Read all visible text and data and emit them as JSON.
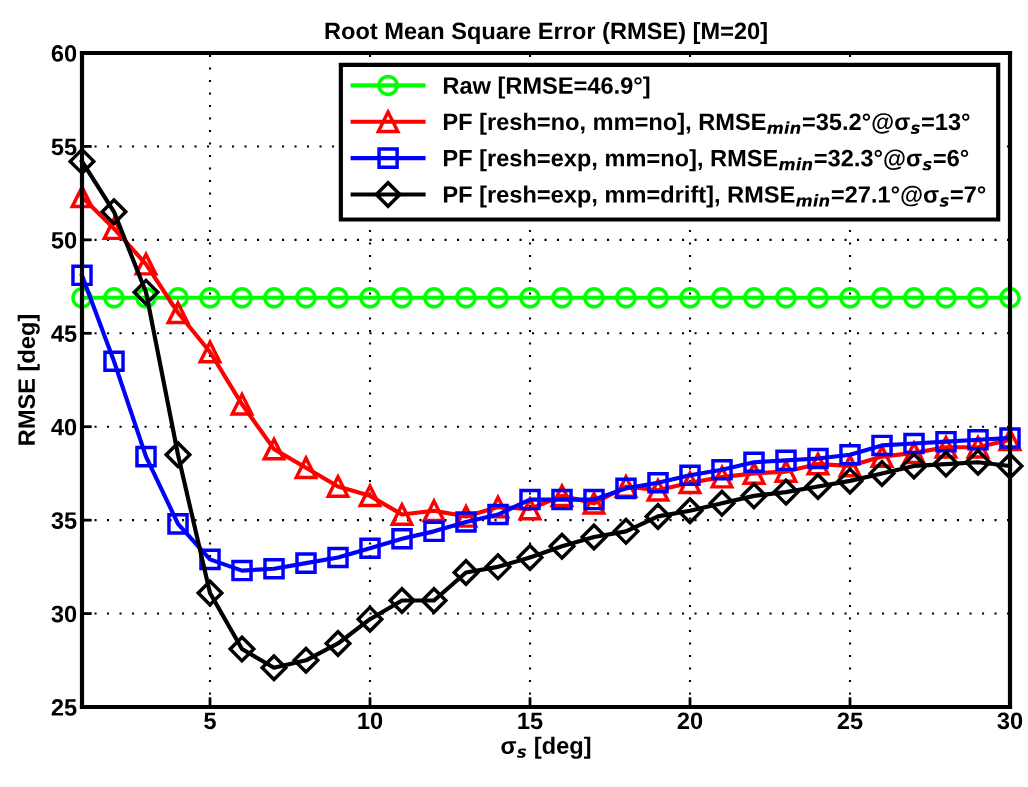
{
  "chart_data": {
    "type": "line",
    "title": "Root Mean Square Error (RMSE) [M=20]",
    "xlabel": "σ$_{s}$ [deg]",
    "ylabel": "RMSE [deg]",
    "x": [
      1,
      2,
      3,
      4,
      5,
      6,
      7,
      8,
      9,
      10,
      11,
      12,
      13,
      14,
      15,
      16,
      17,
      18,
      19,
      20,
      21,
      22,
      23,
      24,
      25,
      26,
      27,
      28,
      29,
      30
    ],
    "series": [
      {
        "name": "Raw [RMSE=46.9°]",
        "color": "#00ff00",
        "marker": "circle",
        "values": [
          46.9,
          46.9,
          46.9,
          46.9,
          46.9,
          46.9,
          46.9,
          46.9,
          46.9,
          46.9,
          46.9,
          46.9,
          46.9,
          46.9,
          46.9,
          46.9,
          46.9,
          46.9,
          46.9,
          46.9,
          46.9,
          46.9,
          46.9,
          46.9,
          46.9,
          46.9,
          46.9,
          46.9,
          46.9,
          46.9
        ]
      },
      {
        "name": "PF [resh=no, mm=no], RMSE$_{min}$=35.2°@σ$_{s}$=13°",
        "color": "#ff0000",
        "marker": "triangle",
        "values": [
          52.3,
          50.6,
          48.7,
          46.1,
          44.0,
          41.2,
          38.8,
          37.8,
          36.8,
          36.3,
          35.3,
          35.5,
          35.2,
          35.7,
          35.6,
          36.3,
          35.9,
          36.8,
          36.6,
          37.0,
          37.3,
          37.5,
          37.6,
          38.0,
          37.9,
          38.4,
          38.6,
          38.9,
          38.9,
          39.3
        ]
      },
      {
        "name": "PF [resh=exp, mm=no], RMSE$_{min}$=32.3°@σ$_{s}$=6°",
        "color": "#0000ff",
        "marker": "square",
        "values": [
          48.1,
          43.5,
          38.4,
          34.8,
          32.9,
          32.3,
          32.4,
          32.7,
          33.0,
          33.5,
          34.0,
          34.4,
          34.9,
          35.3,
          36.1,
          36.1,
          36.1,
          36.7,
          37.0,
          37.4,
          37.7,
          38.1,
          38.2,
          38.3,
          38.5,
          39.0,
          39.1,
          39.2,
          39.3,
          39.4
        ]
      },
      {
        "name": "PF [resh=exp, mm=drift], RMSE$_{min}$=27.1°@σ$_{s}$=7°",
        "color": "#000000",
        "marker": "diamond",
        "values": [
          54.2,
          51.5,
          47.2,
          38.5,
          31.1,
          28.1,
          27.1,
          27.5,
          28.4,
          29.7,
          30.7,
          30.7,
          32.2,
          32.5,
          33.0,
          33.6,
          34.1,
          34.4,
          35.2,
          35.5,
          35.9,
          36.3,
          36.5,
          36.8,
          37.1,
          37.5,
          37.9,
          38.0,
          38.1,
          37.9
        ]
      }
    ],
    "xlim": [
      1,
      30
    ],
    "xticks": [
      5,
      10,
      15,
      20,
      25,
      30
    ],
    "ylim": [
      25,
      60
    ],
    "yticks": [
      25,
      30,
      35,
      40,
      45,
      50,
      55,
      60
    ],
    "grid": true,
    "legend": "top right",
    "line_style": "solid"
  }
}
